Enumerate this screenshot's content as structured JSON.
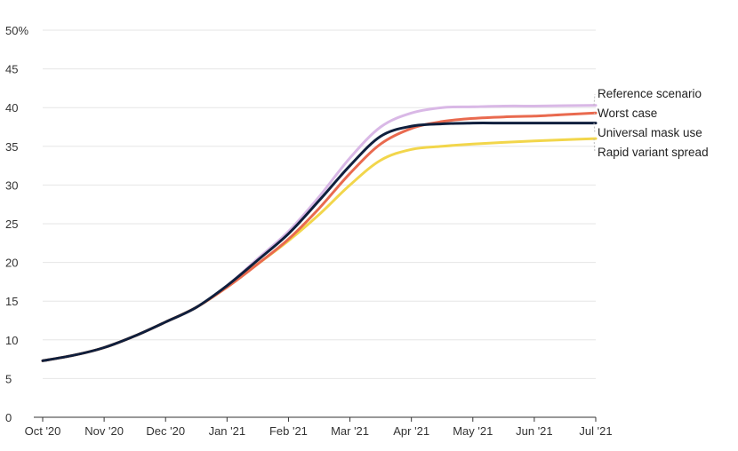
{
  "chart_data": {
    "type": "line",
    "title": "",
    "xlabel": "",
    "ylabel": "",
    "ylim": [
      0,
      50
    ],
    "y_unit_suffix": "%",
    "y_ticks": [
      0,
      5,
      10,
      15,
      20,
      25,
      30,
      35,
      40,
      45,
      50
    ],
    "x_tick_labels": [
      "Oct '20",
      "Nov '20",
      "Dec '20",
      "Jan '21",
      "Feb '21",
      "Mar '21",
      "Apr '21",
      "May '21",
      "Jun '21",
      "Jul '21"
    ],
    "grid": true,
    "legend": "direct labels at right end of lines",
    "x_months": [
      0,
      0.5,
      1,
      1.5,
      2,
      2.5,
      3,
      3.5,
      4,
      4.5,
      5,
      5.5,
      6,
      6.5,
      7,
      7.5,
      8,
      8.5,
      9
    ],
    "series": [
      {
        "name": "Reference scenario",
        "color": "#d9b8e6",
        "values": [
          7.3,
          8.0,
          9.0,
          10.5,
          12.3,
          14.2,
          17.0,
          20.5,
          24.0,
          28.5,
          33.5,
          37.5,
          39.3,
          40.0,
          40.1,
          40.2,
          40.2,
          40.25,
          40.3
        ]
      },
      {
        "name": "Worst case",
        "color": "#e96a4f",
        "values": [
          7.3,
          8.0,
          9.0,
          10.5,
          12.3,
          14.2,
          16.8,
          19.8,
          23.0,
          27.0,
          31.5,
          35.3,
          37.3,
          38.2,
          38.6,
          38.8,
          38.9,
          39.1,
          39.3
        ]
      },
      {
        "name": "Universal mask use",
        "color": "#0f1f3d",
        "values": [
          7.3,
          8.0,
          9.0,
          10.5,
          12.3,
          14.2,
          17.0,
          20.3,
          23.7,
          28.0,
          32.5,
          36.3,
          37.6,
          37.9,
          38.0,
          38.0,
          38.0,
          38.0,
          38.0
        ]
      },
      {
        "name": "Rapid variant spread",
        "color": "#f2d64b",
        "values": [
          7.3,
          8.0,
          9.0,
          10.5,
          12.3,
          14.2,
          16.8,
          19.8,
          22.8,
          26.2,
          30.0,
          33.2,
          34.6,
          35.0,
          35.3,
          35.5,
          35.7,
          35.85,
          36.0
        ]
      }
    ],
    "label_order": [
      "Reference scenario",
      "Worst case",
      "Universal mask use",
      "Rapid variant spread"
    ]
  }
}
